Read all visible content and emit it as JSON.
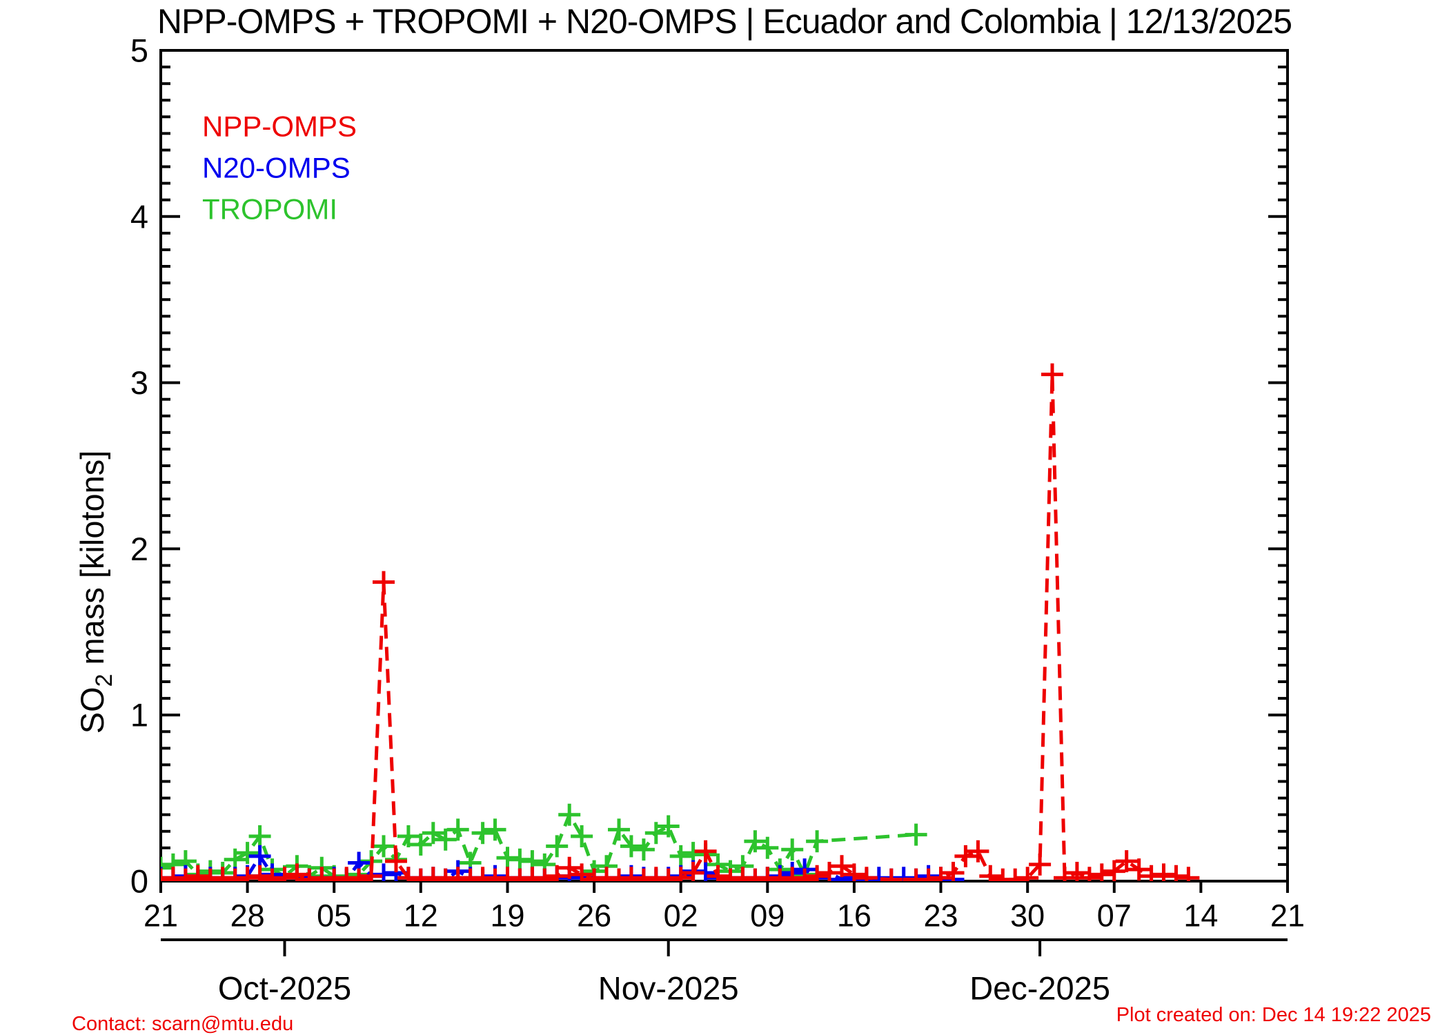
{
  "title": "NPP-OMPS + TROPOMI + N20-OMPS | Ecuador and Colombia | 12/13/2025",
  "footer": {
    "contact": "Contact: scarn@mtu.edu",
    "created": "Plot created on: Dec 14 19:22 2025"
  },
  "legend": {
    "position": "top-left-inside",
    "items": [
      {
        "label": "NPP-OMPS",
        "color": "#ee0000"
      },
      {
        "label": "N20-OMPS",
        "color": "#0000ee"
      },
      {
        "label": "TROPOMI",
        "color": "#2dc32d"
      }
    ]
  },
  "chart_data": {
    "type": "line",
    "title": "NPP-OMPS + TROPOMI + N20-OMPS | Ecuador and Colombia | 12/13/2025",
    "xlabel": "",
    "ylabel": {
      "pre": "SO",
      "sub": "2",
      "post": " mass [kilotons]"
    },
    "ylim": [
      0,
      5
    ],
    "yticks": [
      0,
      1,
      2,
      3,
      4,
      5
    ],
    "y_minor_step": 0.1,
    "xlim_days": [
      0,
      91
    ],
    "x_epoch": "2025-09-21",
    "grid": false,
    "linestyle": "dashed",
    "marker": "plus",
    "frame_color": "#000000",
    "week_ticks": [
      {
        "d": 0,
        "label": "21"
      },
      {
        "d": 7,
        "label": "28"
      },
      {
        "d": 14,
        "label": "05"
      },
      {
        "d": 21,
        "label": "12"
      },
      {
        "d": 28,
        "label": "19"
      },
      {
        "d": 35,
        "label": "26"
      },
      {
        "d": 42,
        "label": "02"
      },
      {
        "d": 49,
        "label": "09"
      },
      {
        "d": 56,
        "label": "16"
      },
      {
        "d": 63,
        "label": "23"
      },
      {
        "d": 70,
        "label": "30"
      },
      {
        "d": 77,
        "label": "07"
      },
      {
        "d": 84,
        "label": "14"
      },
      {
        "d": 91,
        "label": "21"
      }
    ],
    "month_ticks": [
      {
        "d": 10,
        "label": "Oct-2025"
      },
      {
        "d": 41,
        "label": "Nov-2025"
      },
      {
        "d": 71,
        "label": "Dec-2025"
      }
    ],
    "series": [
      {
        "name": "TROPOMI",
        "color": "#2dc32d",
        "points": [
          [
            0,
            0.08
          ],
          [
            1,
            0.1
          ],
          [
            2,
            0.12
          ],
          [
            3,
            0.04
          ],
          [
            4,
            0.06
          ],
          [
            5,
            0.05
          ],
          [
            6,
            0.13
          ],
          [
            7,
            0.17
          ],
          [
            8,
            0.27
          ],
          [
            9,
            0.07
          ],
          [
            10,
            0.03
          ],
          [
            11,
            0.09
          ],
          [
            12,
            0.03
          ],
          [
            13,
            0.08
          ],
          [
            14,
            0.03
          ],
          [
            15,
            0.01
          ],
          [
            16,
            0.04
          ],
          [
            17,
            0.12
          ],
          [
            18,
            0.21
          ],
          [
            19,
            0.13
          ],
          [
            20,
            0.27
          ],
          [
            21,
            0.22
          ],
          [
            22,
            0.29
          ],
          [
            23,
            0.25
          ],
          [
            24,
            0.31
          ],
          [
            25,
            0.11
          ],
          [
            26,
            0.29
          ],
          [
            27,
            0.31
          ],
          [
            28,
            0.14
          ],
          [
            29,
            0.13
          ],
          [
            30,
            0.12
          ],
          [
            31,
            0.1
          ],
          [
            32,
            0.21
          ],
          [
            33,
            0.4
          ],
          [
            34,
            0.27
          ],
          [
            35,
            0.06
          ],
          [
            36,
            0.09
          ],
          [
            37,
            0.31
          ],
          [
            38,
            0.21
          ],
          [
            39,
            0.19
          ],
          [
            40,
            0.29
          ],
          [
            41,
            0.33
          ],
          [
            42,
            0.15
          ],
          [
            43,
            0.17
          ],
          [
            44,
            0.16
          ],
          [
            45,
            0.1
          ],
          [
            46,
            0.06
          ],
          [
            47,
            0.09
          ],
          [
            48,
            0.24
          ],
          [
            49,
            0.2
          ],
          [
            50,
            0.07
          ],
          [
            51,
            0.19
          ],
          [
            52,
            0.04
          ],
          [
            53,
            0.24
          ],
          [
            61,
            0.28
          ]
        ]
      },
      {
        "name": "N20-OMPS",
        "color": "#0000ee",
        "points": [
          [
            0,
            0.02
          ],
          [
            1,
            0.01
          ],
          [
            2,
            0.03
          ],
          [
            3,
            0.01
          ],
          [
            4,
            0.02
          ],
          [
            5,
            0.01
          ],
          [
            6,
            0.02
          ],
          [
            7,
            0.03
          ],
          [
            8,
            0.15
          ],
          [
            9,
            0.04
          ],
          [
            10,
            0.02
          ],
          [
            11,
            0.03
          ],
          [
            12,
            0.01
          ],
          [
            13,
            0.02
          ],
          [
            14,
            0.02
          ],
          [
            15,
            0.01
          ],
          [
            16,
            0.11
          ],
          [
            17,
            0.03
          ],
          [
            18,
            0.04
          ],
          [
            19,
            0.05
          ],
          [
            20,
            0.02
          ],
          [
            21,
            0.01
          ],
          [
            22,
            0.02
          ],
          [
            23,
            0.01
          ],
          [
            24,
            0.06
          ],
          [
            25,
            0.02
          ],
          [
            26,
            0.01
          ],
          [
            27,
            0.03
          ],
          [
            28,
            0.02
          ],
          [
            29,
            0.01
          ],
          [
            30,
            0.02
          ],
          [
            31,
            0.01
          ],
          [
            32,
            0.02
          ],
          [
            33,
            0.03
          ],
          [
            34,
            0.02
          ],
          [
            35,
            0.01
          ],
          [
            36,
            0.02
          ],
          [
            37,
            0.01
          ],
          [
            38,
            0.03
          ],
          [
            39,
            0.02
          ],
          [
            40,
            0.01
          ],
          [
            41,
            0.02
          ],
          [
            42,
            0.03
          ],
          [
            43,
            0.06
          ],
          [
            44,
            0.05
          ],
          [
            45,
            0.02
          ],
          [
            46,
            0.01
          ],
          [
            47,
            0.02
          ],
          [
            48,
            0.01
          ],
          [
            49,
            0.02
          ],
          [
            50,
            0.03
          ],
          [
            51,
            0.05
          ],
          [
            52,
            0.07
          ],
          [
            53,
            0.02
          ],
          [
            54,
            0.05
          ],
          [
            55,
            0.01
          ],
          [
            56,
            0.02
          ],
          [
            57,
            0.01
          ],
          [
            58,
            0.02
          ],
          [
            59,
            0.01
          ],
          [
            60,
            0.02
          ],
          [
            61,
            0.01
          ],
          [
            62,
            0.03
          ],
          [
            63,
            0.02
          ],
          [
            64,
            0.01
          ]
        ]
      },
      {
        "name": "NPP-OMPS",
        "color": "#ee0000",
        "points": [
          [
            0,
            0.01
          ],
          [
            1,
            0.02
          ],
          [
            2,
            0.01
          ],
          [
            3,
            0.03
          ],
          [
            4,
            0.01
          ],
          [
            5,
            0.02
          ],
          [
            6,
            0.01
          ],
          [
            7,
            0.02
          ],
          [
            8,
            0.03
          ],
          [
            9,
            0.01
          ],
          [
            10,
            0.02
          ],
          [
            11,
            0.04
          ],
          [
            12,
            0.01
          ],
          [
            13,
            0.02
          ],
          [
            14,
            0.01
          ],
          [
            15,
            0.02
          ],
          [
            16,
            0.01
          ],
          [
            17,
            0.03
          ],
          [
            18,
            1.8
          ],
          [
            19,
            0.12
          ],
          [
            20,
            0.02
          ],
          [
            21,
            0.01
          ],
          [
            22,
            0.02
          ],
          [
            23,
            0.01
          ],
          [
            24,
            0.02
          ],
          [
            25,
            0.01
          ],
          [
            26,
            0.02
          ],
          [
            27,
            0.01
          ],
          [
            28,
            0.02
          ],
          [
            29,
            0.01
          ],
          [
            30,
            0.02
          ],
          [
            31,
            0.01
          ],
          [
            32,
            0.03
          ],
          [
            33,
            0.08
          ],
          [
            34,
            0.04
          ],
          [
            35,
            0.01
          ],
          [
            36,
            0.02
          ],
          [
            37,
            0.01
          ],
          [
            38,
            0.02
          ],
          [
            39,
            0.01
          ],
          [
            40,
            0.02
          ],
          [
            41,
            0.01
          ],
          [
            42,
            0.02
          ],
          [
            43,
            0.05
          ],
          [
            44,
            0.18
          ],
          [
            45,
            0.03
          ],
          [
            46,
            0.01
          ],
          [
            47,
            0.02
          ],
          [
            48,
            0.01
          ],
          [
            49,
            0.02
          ],
          [
            50,
            0.01
          ],
          [
            51,
            0.02
          ],
          [
            52,
            0.01
          ],
          [
            53,
            0.03
          ],
          [
            54,
            0.05
          ],
          [
            55,
            0.09
          ],
          [
            56,
            0.04
          ],
          [
            57,
            0.02
          ],
          [
            59,
            0.01
          ],
          [
            61,
            0.01
          ],
          [
            62,
            0.01
          ],
          [
            63,
            0.02
          ],
          [
            64,
            0.05
          ],
          [
            65,
            0.15
          ],
          [
            66,
            0.18
          ],
          [
            67,
            0.03
          ],
          [
            68,
            0.01
          ],
          [
            69,
            0.01
          ],
          [
            70,
            0.02
          ],
          [
            71,
            0.1
          ],
          [
            72,
            3.05
          ],
          [
            73,
            0.02
          ],
          [
            74,
            0.05
          ],
          [
            75,
            0.02
          ],
          [
            76,
            0.04
          ],
          [
            77,
            0.06
          ],
          [
            78,
            0.12
          ],
          [
            79,
            0.07
          ],
          [
            80,
            0.03
          ],
          [
            81,
            0.04
          ],
          [
            82,
            0.03
          ],
          [
            83,
            0.02
          ]
        ]
      }
    ]
  }
}
